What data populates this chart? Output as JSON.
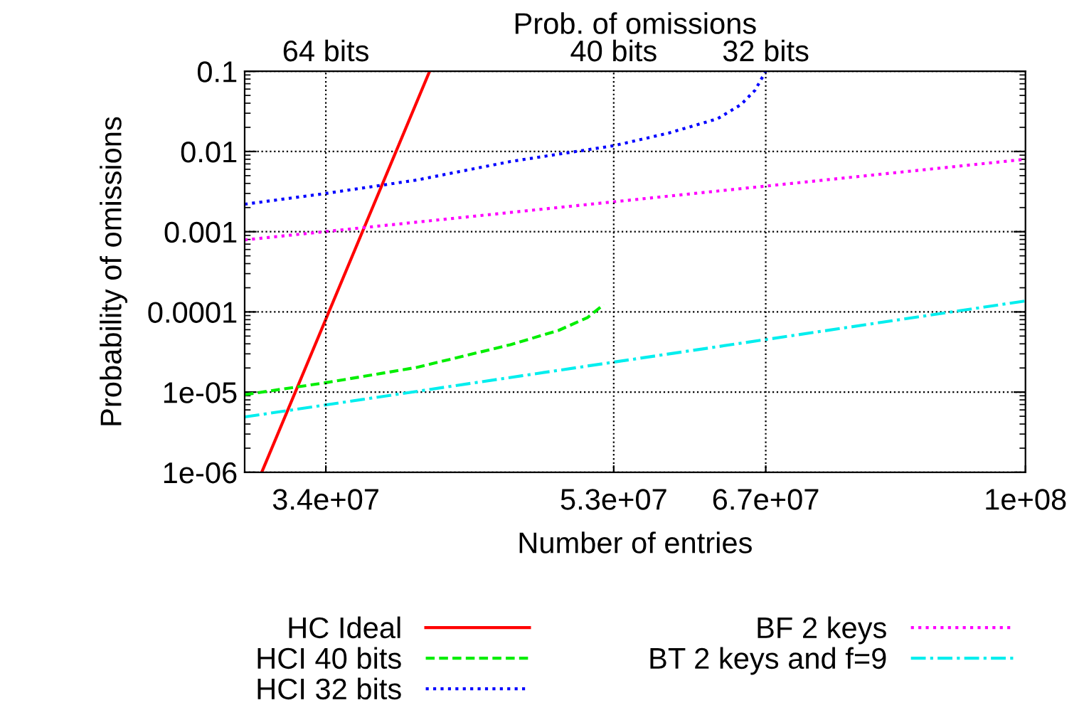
{
  "chart_data": {
    "type": "line",
    "xlabel": "Number of entries",
    "ylabel": "Probability of omissions",
    "title": "Prob. of omissions",
    "ref_lines": [
      {
        "axis": "x",
        "value": 34000000,
        "label": "64 bits",
        "color": "#000000",
        "line_style": "dotted"
      },
      {
        "axis": "x",
        "value": 53000000,
        "label": "40 bits",
        "color": "#000000",
        "line_style": "dotted"
      },
      {
        "axis": "x",
        "value": 67000000,
        "label": "32 bits",
        "color": "#000000",
        "line_style": "dotted"
      }
    ],
    "log": "xy",
    "grid": "y",
    "legend": "bottom",
    "xlim": [
      30000000,
      100000000
    ],
    "xticks": [
      {
        "value": 34000000,
        "label": "3.4e+07"
      },
      {
        "value": 53000000,
        "label": "5.3e+07"
      },
      {
        "value": 67000000,
        "label": "6.7e+07"
      },
      {
        "value": 100000000,
        "label": "1e+08"
      }
    ],
    "ylim": [
      1e-06,
      0.1
    ],
    "yticks": [
      {
        "value": 1e-06,
        "label": "1e-06"
      },
      {
        "value": 1e-05,
        "label": "1e-05"
      },
      {
        "value": 0.0001,
        "label": "0.0001"
      },
      {
        "value": 0.001,
        "label": "0.001"
      },
      {
        "value": 0.01,
        "label": "0.01"
      },
      {
        "value": 0.1,
        "label": "0.1"
      }
    ],
    "series": [
      {
        "name": "HC Ideal",
        "color": "#ff0000",
        "line_style": "solid",
        "x": [
          30800000,
          39900000
        ],
        "values": [
          1e-06,
          0.1
        ]
      },
      {
        "name": "HCI 40 bits",
        "color": "#00ee00",
        "line_style": "dashed",
        "x": [
          30000000,
          34000000,
          39100000,
          45200000,
          48700000,
          50900000,
          52200000
        ],
        "values": [
          9.3e-06,
          1.31e-05,
          2.03e-05,
          3.9e-05,
          5.9e-05,
          8.5e-05,
          0.000124
        ]
      },
      {
        "name": "HCI 32 bits",
        "color": "#0000ff",
        "line_style": "dotted",
        "x": [
          30000000,
          34000000,
          39100000,
          45200000,
          53000000,
          57700000,
          62200000,
          64500000,
          65900000,
          67000000
        ],
        "values": [
          0.0022,
          0.003,
          0.0044,
          0.0075,
          0.0118,
          0.017,
          0.0256,
          0.0385,
          0.058,
          0.1
        ]
      },
      {
        "name": "BF 2 keys",
        "color": "#ff00ff",
        "line_style": "dotted",
        "x": [
          30000000,
          100000000
        ],
        "values": [
          0.00079,
          0.008
        ]
      },
      {
        "name": "BT 2 keys and f=9",
        "color": "#00eeee",
        "line_style": "dashdot",
        "x": [
          30000000,
          100000000
        ],
        "values": [
          4.9e-06,
          0.000137
        ]
      }
    ]
  }
}
